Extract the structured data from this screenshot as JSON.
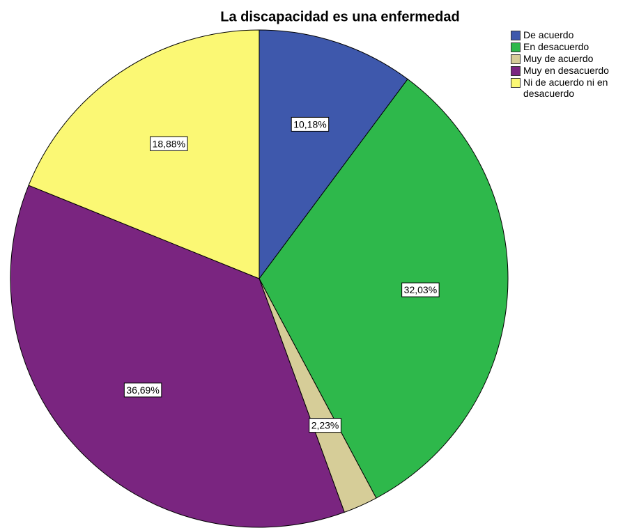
{
  "chart_data": {
    "type": "pie",
    "title": "La discapacidad es una enfermedad",
    "categories": [
      "De acuerdo",
      "En desacuerdo",
      "Muy de acuerdo",
      "Muy en desacuerdo",
      "Ni de acuerdo ni en desacuerdo"
    ],
    "values": [
      10.18,
      32.03,
      2.23,
      36.69,
      18.88
    ],
    "value_labels": [
      "10,18%",
      "32,03%",
      "2,23%",
      "36,69%",
      "18,88%"
    ],
    "colors": [
      "#3e58ac",
      "#2eb84b",
      "#d6cd98",
      "#7a2580",
      "#fbf874"
    ],
    "legend": "top-right"
  }
}
